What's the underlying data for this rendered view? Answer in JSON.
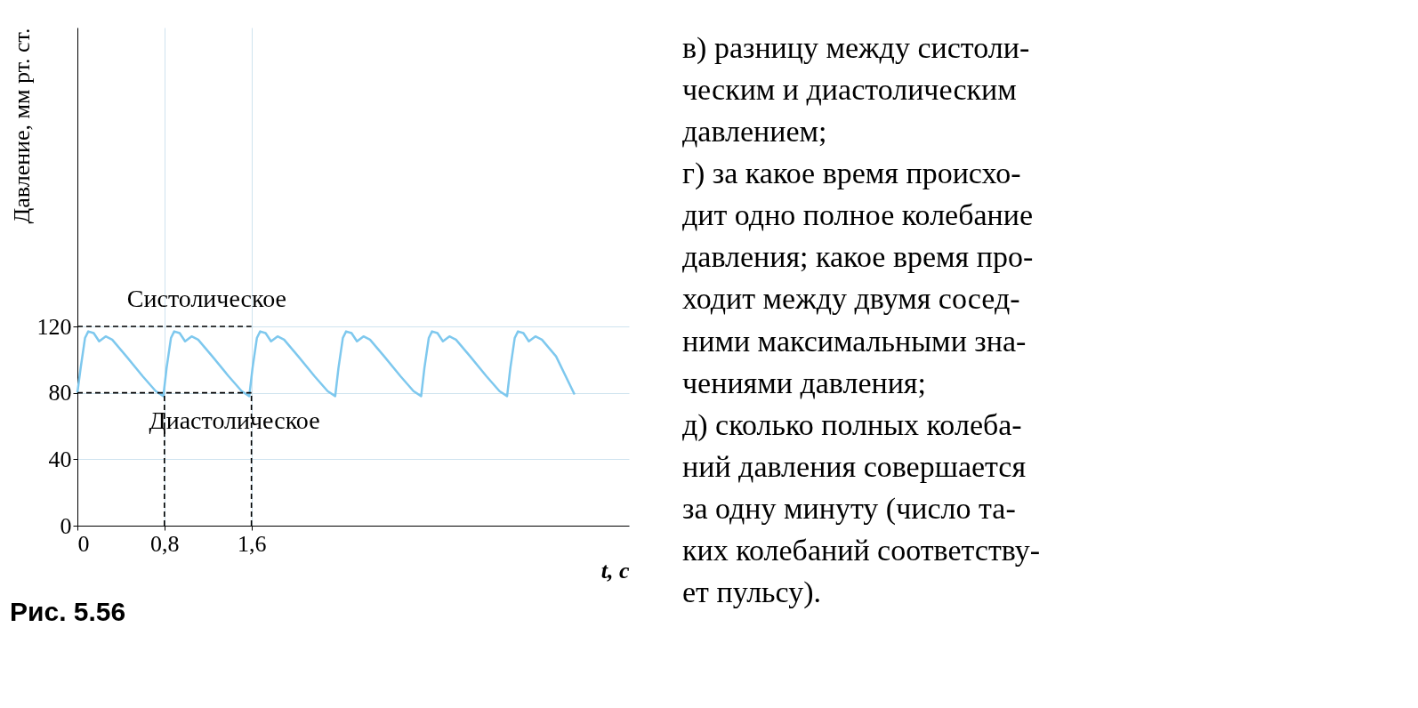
{
  "chart_data": {
    "type": "line",
    "xlabel": "t, c",
    "ylabel": "Давление, мм рт. ст.",
    "xlim": [
      0,
      5.07
    ],
    "ylim": [
      0,
      300
    ],
    "xticks": [
      {
        "value": 0,
        "label": "0"
      },
      {
        "value": 0.8,
        "label": "0,8"
      },
      {
        "value": 1.6,
        "label": "1,6"
      }
    ],
    "yticks": [
      0,
      40,
      80,
      120
    ],
    "grid": true,
    "marker": "none",
    "line_style": "solid",
    "series": [
      {
        "color": "#7ec8ee",
        "x": [
          0,
          0.03,
          0.07,
          0.1,
          0.15,
          0.2,
          0.26,
          0.32,
          0.45,
          0.6,
          0.72,
          0.79,
          0.82,
          0.86,
          0.89,
          0.94,
          0.99,
          1.05,
          1.11,
          1.24,
          1.39,
          1.51,
          1.58,
          1.61,
          1.65,
          1.68,
          1.73,
          1.78,
          1.84,
          1.9,
          2.03,
          2.18,
          2.3,
          2.37,
          2.4,
          2.44,
          2.47,
          2.52,
          2.57,
          2.63,
          2.69,
          2.82,
          2.97,
          3.09,
          3.16,
          3.19,
          3.23,
          3.26,
          3.31,
          3.36,
          3.42,
          3.48,
          3.61,
          3.76,
          3.88,
          3.95,
          3.98,
          4.02,
          4.05,
          4.1,
          4.15,
          4.21,
          4.27,
          4.4,
          4.57
        ],
        "values": [
          80,
          95,
          113,
          117,
          116,
          111,
          114,
          112,
          102,
          90,
          81,
          78,
          95,
          113,
          117,
          116,
          111,
          114,
          112,
          102,
          90,
          81,
          78,
          95,
          113,
          117,
          116,
          111,
          114,
          112,
          102,
          90,
          81,
          78,
          95,
          113,
          117,
          116,
          111,
          114,
          112,
          102,
          90,
          81,
          78,
          95,
          113,
          117,
          116,
          111,
          114,
          112,
          102,
          90,
          81,
          78,
          95,
          113,
          117,
          116,
          111,
          114,
          112,
          102,
          79
        ]
      }
    ],
    "ref_lines": [
      {
        "axis": "y",
        "value": 120,
        "label": "Систолическое",
        "line_style": "dashed",
        "color": "#000000"
      },
      {
        "axis": "y",
        "value": 80,
        "label": "Диастолическое",
        "line_style": "dashed",
        "color": "#000000"
      },
      {
        "axis": "x",
        "value": 0.8,
        "line_style": "dashed",
        "color": "#000000"
      },
      {
        "axis": "x",
        "value": 1.6,
        "line_style": "dashed",
        "color": "#000000"
      }
    ],
    "annotations": [
      "Рис. 5.56",
      "в) разницу между систоли-",
      "ческим и диастолическим",
      "давлением;",
      "г) за какое время происхо-",
      "дит одно полное колебание",
      "давления; какое время про-",
      "ходит между двумя сосед-",
      "ними максимальными зна-",
      "чениями давления;",
      "д) сколько полных колеба-",
      "ний давления совершается",
      "за одну минуту (число та-",
      "ких колебаний соответству-",
      "ет пульсу)."
    ]
  }
}
